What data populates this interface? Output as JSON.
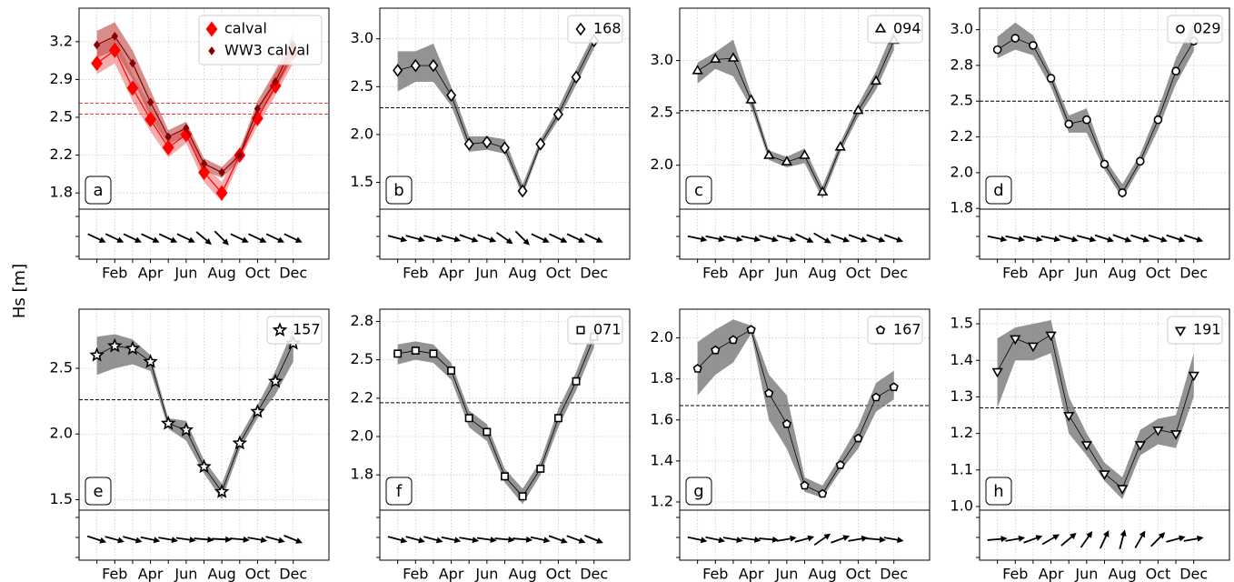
{
  "ylabel": "Hs [m]",
  "chart_data": [
    {
      "type": "line",
      "label": "a",
      "categories": [
        null,
        "Feb",
        null,
        "Apr",
        null,
        "Jun",
        null,
        "Aug",
        null,
        "Oct",
        null,
        "Dec"
      ],
      "ylim": [
        1.65,
        3.51
      ],
      "yticks": [
        1.8,
        {
          "value": 2.15,
          "label": "2.2"
        },
        2.5,
        {
          "value": 2.85,
          "label": "2.9"
        },
        3.2
      ],
      "grid": true,
      "mean_lines": [
        {
          "value": 2.63,
          "color": "#e0474c"
        },
        {
          "value": 2.53,
          "color": "#ff3030"
        }
      ],
      "series": [
        {
          "name": "calval",
          "marker": "diamond",
          "filled": true,
          "size": 6,
          "color": "#ff0000",
          "band_color": "#f08080",
          "values": [
            3.0,
            3.12,
            2.77,
            2.48,
            2.22,
            2.34,
            1.99,
            1.8,
            2.15,
            2.49,
            2.79,
            3.1
          ],
          "lower": [
            2.9,
            3.0,
            2.65,
            2.37,
            2.13,
            2.26,
            1.9,
            1.72,
            2.1,
            2.42,
            2.7,
            3.0
          ],
          "upper": [
            3.15,
            3.25,
            2.9,
            2.6,
            2.3,
            2.42,
            2.06,
            1.9,
            2.22,
            2.57,
            2.9,
            3.2
          ]
        },
        {
          "name": "WW3 calval",
          "marker": "diamond",
          "filled": true,
          "size": 3,
          "color": "#8b0000",
          "band_color": "#c0504d",
          "values": [
            3.17,
            3.25,
            3.0,
            2.64,
            2.32,
            2.4,
            2.07,
            1.99,
            2.15,
            2.58,
            2.83,
            3.17
          ],
          "lower": [
            3.05,
            3.12,
            2.85,
            2.5,
            2.25,
            2.33,
            2.01,
            1.94,
            2.1,
            2.5,
            2.75,
            3.05
          ],
          "upper": [
            3.3,
            3.38,
            3.12,
            2.75,
            2.38,
            2.46,
            2.12,
            2.04,
            2.2,
            2.65,
            2.93,
            3.28
          ]
        }
      ],
      "arrow_angles": [
        25,
        25,
        25,
        25,
        25,
        25,
        40,
        45,
        25,
        25,
        25,
        25
      ]
    },
    {
      "type": "line",
      "label": "b",
      "categories": [
        null,
        "Feb",
        null,
        "Apr",
        null,
        "Jun",
        null,
        "Aug",
        null,
        "Oct",
        null,
        "Dec"
      ],
      "ylim": [
        1.22,
        3.32
      ],
      "yticks": [
        1.5,
        {
          "value": 2,
          "label": "2.0"
        },
        2.5,
        {
          "value": 3,
          "label": "3.0"
        }
      ],
      "grid": true,
      "mean_lines": [
        {
          "value": 2.28,
          "color": "#000000"
        }
      ],
      "series": [
        {
          "name": "168",
          "marker": "diamond",
          "filled": false,
          "size": 5,
          "color": "#000000",
          "band_color": "#808080",
          "values": [
            2.67,
            2.72,
            2.72,
            2.41,
            1.9,
            1.92,
            1.86,
            1.41,
            1.9,
            2.21,
            2.6,
            2.98
          ],
          "lower": [
            2.45,
            2.55,
            2.55,
            2.3,
            1.82,
            1.84,
            1.8,
            1.36,
            1.86,
            2.15,
            2.52,
            2.9
          ],
          "upper": [
            2.87,
            2.87,
            2.95,
            2.5,
            1.98,
            1.98,
            1.95,
            1.48,
            1.95,
            2.28,
            2.68,
            3.05
          ]
        }
      ],
      "arrow_angles": [
        15,
        15,
        15,
        15,
        20,
        20,
        35,
        45,
        25,
        25,
        25,
        25
      ]
    },
    {
      "type": "line",
      "label": "c",
      "categories": [
        null,
        "Feb",
        null,
        "Apr",
        null,
        "Jun",
        null,
        "Aug",
        null,
        "Oct",
        null,
        "Dec"
      ],
      "ylim": [
        1.58,
        3.5
      ],
      "yticks": [
        {
          "value": 2,
          "label": "2.0"
        },
        2.5,
        {
          "value": 3,
          "label": "3.0"
        }
      ],
      "grid": true,
      "mean_lines": [
        {
          "value": 2.52,
          "color": "#000000"
        }
      ],
      "series": [
        {
          "name": "094",
          "marker": "triangle",
          "filled": false,
          "size": 5,
          "color": "#000000",
          "band_color": "#808080",
          "values": [
            2.9,
            3.01,
            3.02,
            2.62,
            2.09,
            2.03,
            2.09,
            1.74,
            2.17,
            2.52,
            2.8,
            3.19
          ],
          "lower": [
            2.78,
            2.92,
            2.85,
            2.55,
            2.05,
            1.98,
            2.02,
            1.68,
            2.12,
            2.46,
            2.72,
            3.1
          ],
          "upper": [
            2.98,
            3.08,
            3.2,
            2.68,
            2.14,
            2.08,
            2.16,
            1.8,
            2.22,
            2.58,
            2.9,
            3.3
          ]
        }
      ],
      "arrow_angles": [
        12,
        12,
        12,
        12,
        15,
        15,
        25,
        30,
        20,
        20,
        20,
        20
      ]
    },
    {
      "type": "line",
      "label": "d",
      "categories": [
        null,
        "Feb",
        null,
        "Apr",
        null,
        "Jun",
        null,
        "Aug",
        null,
        "Oct",
        null,
        "Dec"
      ],
      "ylim": [
        1.745,
        3.15
      ],
      "yticks": [
        {
          "value": 1.75,
          "label": "1.8"
        },
        {
          "value": 2,
          "label": "2.0"
        },
        {
          "value": 2.25,
          "label": "2.2"
        },
        2.5,
        {
          "value": 2.75,
          "label": "2.8"
        },
        {
          "value": 3,
          "label": "3.0"
        }
      ],
      "grid": true,
      "mean_lines": [
        {
          "value": 2.5,
          "color": "#000000"
        }
      ],
      "series": [
        {
          "name": "029",
          "marker": "circle",
          "filled": false,
          "size": 4,
          "color": "#000000",
          "band_color": "#808080",
          "values": [
            2.86,
            2.94,
            2.89,
            2.66,
            2.34,
            2.37,
            2.06,
            1.86,
            2.08,
            2.37,
            2.71,
            2.92
          ],
          "lower": [
            2.8,
            2.86,
            2.82,
            2.6,
            2.28,
            2.28,
            2.02,
            1.82,
            2.04,
            2.3,
            2.62,
            2.85
          ],
          "upper": [
            2.95,
            3.05,
            2.96,
            2.7,
            2.4,
            2.45,
            2.1,
            1.92,
            2.13,
            2.44,
            2.8,
            3.05
          ]
        }
      ],
      "arrow_angles": [
        12,
        12,
        12,
        12,
        15,
        15,
        18,
        20,
        18,
        18,
        18,
        18
      ]
    },
    {
      "type": "line",
      "label": "e",
      "categories": [
        null,
        "Feb",
        null,
        "Apr",
        null,
        "Jun",
        null,
        "Aug",
        null,
        "Oct",
        null,
        "Dec"
      ],
      "ylim": [
        1.42,
        2.95
      ],
      "yticks": [
        1.5,
        {
          "value": 2,
          "label": "2.0"
        },
        2.5
      ],
      "grid": true,
      "mean_lines": [
        {
          "value": 2.26,
          "color": "#000000"
        }
      ],
      "series": [
        {
          "name": "157",
          "marker": "star",
          "filled": false,
          "size": 6,
          "color": "#000000",
          "band_color": "#808080",
          "values": [
            2.6,
            2.67,
            2.65,
            2.55,
            2.08,
            2.03,
            1.75,
            1.56,
            1.93,
            2.17,
            2.4,
            2.69
          ],
          "lower": [
            2.45,
            2.5,
            2.53,
            2.48,
            2.04,
            1.95,
            1.7,
            1.5,
            1.88,
            2.12,
            2.3,
            2.55
          ],
          "upper": [
            2.74,
            2.76,
            2.72,
            2.6,
            2.12,
            2.1,
            1.8,
            1.62,
            1.98,
            2.22,
            2.48,
            2.8
          ]
        }
      ],
      "arrow_angles": [
        18,
        15,
        15,
        12,
        10,
        8,
        5,
        3,
        5,
        10,
        15,
        22
      ]
    },
    {
      "type": "line",
      "label": "f",
      "categories": [
        null,
        "Feb",
        null,
        "Apr",
        null,
        "Jun",
        null,
        "Aug",
        null,
        "Oct",
        null,
        "Dec"
      ],
      "ylim": [
        1.52,
        2.83
      ],
      "yticks": [
        {
          "value": 1.75,
          "label": "1.8"
        },
        {
          "value": 2,
          "label": "2.0"
        },
        {
          "value": 2.25,
          "label": "2.2"
        },
        2.5,
        {
          "value": 2.75,
          "label": "2.8"
        }
      ],
      "grid": true,
      "mean_lines": [
        {
          "value": 2.22,
          "color": "#000000"
        }
      ],
      "series": [
        {
          "name": "071",
          "marker": "square",
          "filled": false,
          "size": 4,
          "color": "#000000",
          "band_color": "#808080",
          "values": [
            2.54,
            2.56,
            2.54,
            2.43,
            2.12,
            2.03,
            1.74,
            1.61,
            1.79,
            2.12,
            2.36,
            2.65
          ],
          "lower": [
            2.47,
            2.5,
            2.48,
            2.37,
            2.06,
            1.97,
            1.7,
            1.56,
            1.75,
            2.06,
            2.3,
            2.58
          ],
          "upper": [
            2.6,
            2.62,
            2.6,
            2.48,
            2.17,
            2.08,
            1.79,
            1.66,
            1.84,
            2.18,
            2.42,
            2.72
          ]
        }
      ],
      "arrow_angles": [
        15,
        15,
        15,
        12,
        10,
        8,
        5,
        5,
        12,
        20,
        20,
        22
      ]
    },
    {
      "type": "line",
      "label": "g",
      "categories": [
        null,
        "Feb",
        null,
        "Apr",
        null,
        "Jun",
        null,
        "Aug",
        null,
        "Oct",
        null,
        "Dec"
      ],
      "ylim": [
        1.16,
        2.14
      ],
      "yticks": [
        1.2,
        1.4,
        1.6,
        1.8,
        {
          "value": 2,
          "label": "2.0"
        }
      ],
      "grid": true,
      "mean_lines": [
        {
          "value": 1.67,
          "color": "#000000"
        }
      ],
      "series": [
        {
          "name": "167",
          "marker": "pentagon",
          "filled": false,
          "size": 4,
          "color": "#000000",
          "band_color": "#808080",
          "values": [
            1.85,
            1.94,
            1.99,
            2.04,
            1.73,
            1.58,
            1.28,
            1.24,
            1.38,
            1.51,
            1.71,
            1.76
          ],
          "lower": [
            1.72,
            1.82,
            1.88,
            2.02,
            1.6,
            1.46,
            1.25,
            1.22,
            1.35,
            1.46,
            1.64,
            1.7
          ],
          "upper": [
            1.98,
            2.04,
            2.09,
            2.06,
            1.82,
            1.72,
            1.32,
            1.28,
            1.42,
            1.57,
            1.78,
            1.84
          ]
        }
      ],
      "arrow_angles": [
        12,
        12,
        10,
        8,
        5,
        -10,
        -15,
        -35,
        -20,
        -10,
        5,
        10
      ]
    },
    {
      "type": "line",
      "label": "h",
      "categories": [
        null,
        "Feb",
        null,
        "Apr",
        null,
        "Jun",
        null,
        "Aug",
        null,
        "Oct",
        null,
        "Dec"
      ],
      "ylim": [
        0.99,
        1.54
      ],
      "yticks": [
        {
          "value": 1,
          "label": "1.0"
        },
        1.1,
        1.2,
        1.3,
        1.4,
        1.5
      ],
      "grid": true,
      "mean_lines": [
        {
          "value": 1.27,
          "color": "#000000"
        }
      ],
      "series": [
        {
          "name": "191",
          "marker": "triangle-down",
          "filled": false,
          "size": 5,
          "color": "#000000",
          "band_color": "#808080",
          "values": [
            1.37,
            1.46,
            1.44,
            1.47,
            1.25,
            1.17,
            1.09,
            1.05,
            1.17,
            1.21,
            1.2,
            1.36
          ],
          "lower": [
            1.27,
            1.4,
            1.4,
            1.42,
            1.2,
            1.14,
            1.07,
            1.02,
            1.14,
            1.17,
            1.16,
            1.3
          ],
          "upper": [
            1.46,
            1.49,
            1.5,
            1.51,
            1.3,
            1.2,
            1.12,
            1.08,
            1.21,
            1.24,
            1.25,
            1.42
          ]
        }
      ],
      "arrow_angles": [
        -5,
        -10,
        -20,
        -30,
        -40,
        -55,
        -65,
        -75,
        -60,
        -45,
        -15,
        -10
      ]
    }
  ]
}
